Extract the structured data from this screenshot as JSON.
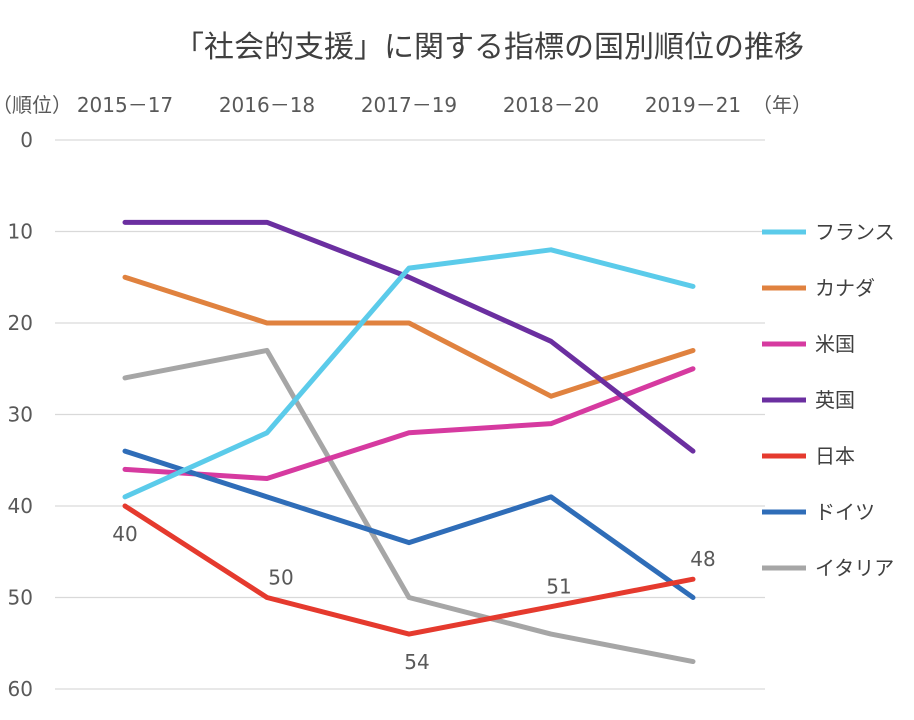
{
  "chart_data": {
    "type": "line",
    "title": "「社会的支援」に関する指標の国別順位の推移",
    "ylabel": "（順位）",
    "xlabel": "（年）",
    "y_axis_reversed": true,
    "ylim": [
      0,
      60
    ],
    "yticks": [
      0,
      10,
      20,
      30,
      40,
      50,
      60
    ],
    "grid": true,
    "legend_position": "right",
    "categories": [
      "2015－17",
      "2016－18",
      "2017－19",
      "2018－20",
      "2019－21"
    ],
    "series": [
      {
        "name": "フランス",
        "color": "#5BCBEA",
        "values": [
          39,
          32,
          14,
          12,
          16
        ]
      },
      {
        "name": "カナダ",
        "color": "#E0823F",
        "values": [
          15,
          20,
          20,
          28,
          23
        ]
      },
      {
        "name": "米国",
        "color": "#D63AA0",
        "values": [
          36,
          37,
          32,
          31,
          25
        ]
      },
      {
        "name": "英国",
        "color": "#6B2FA0",
        "values": [
          9,
          9,
          15,
          22,
          34
        ]
      },
      {
        "name": "日本",
        "color": "#E53A2E",
        "values": [
          40,
          50,
          54,
          51,
          48
        ],
        "data_labels": true
      },
      {
        "name": "ドイツ",
        "color": "#2F6DB8",
        "values": [
          34,
          39,
          44,
          39,
          50
        ]
      },
      {
        "name": "イタリア",
        "color": "#A6A6A6",
        "values": [
          26,
          23,
          50,
          54,
          57
        ]
      }
    ]
  }
}
